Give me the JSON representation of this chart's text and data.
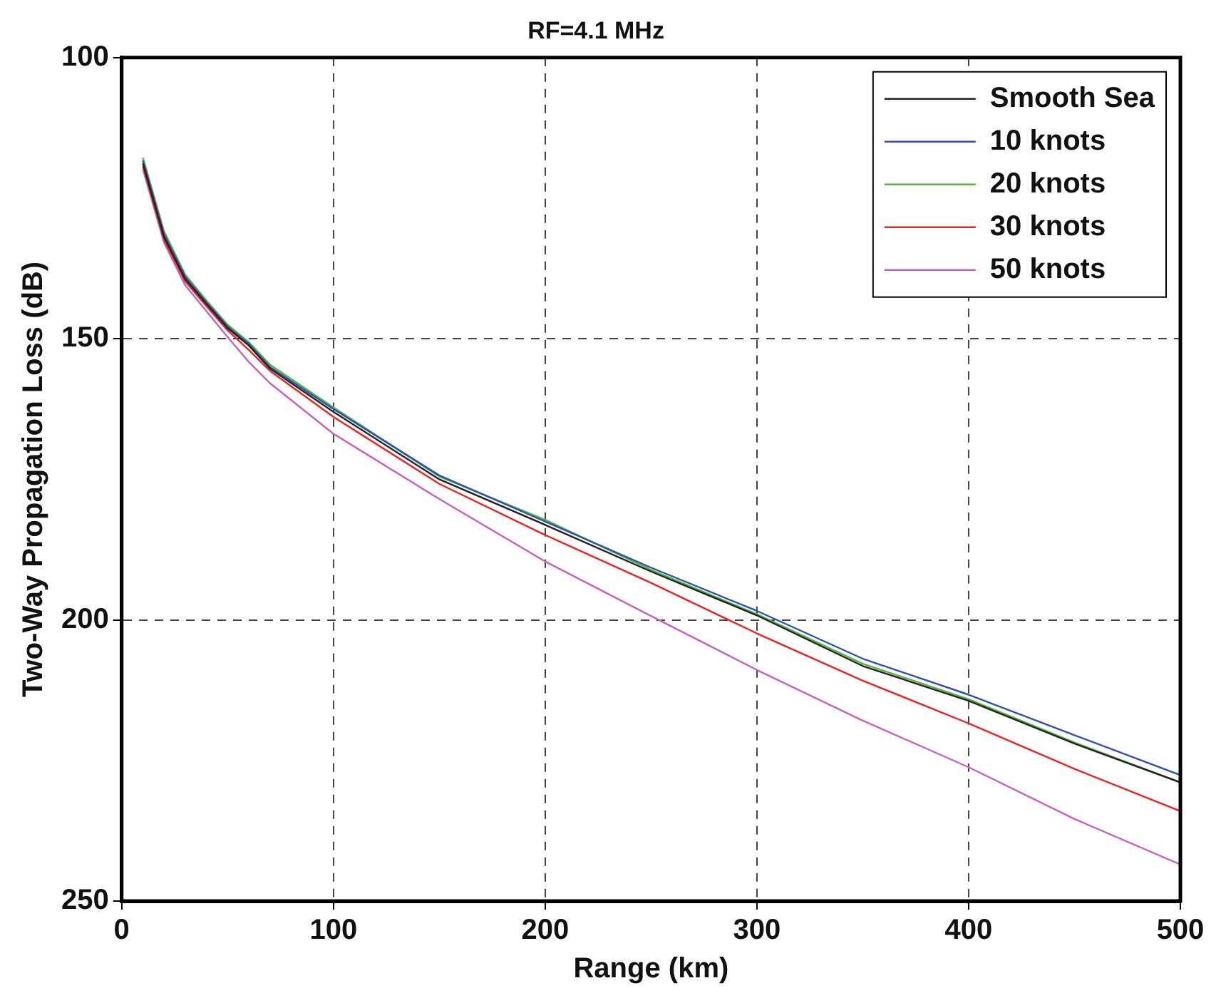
{
  "chart_data": {
    "type": "line",
    "title": "RF=4.1 MHz",
    "xlabel": "Range (km)",
    "ylabel": "Two-Way Propagation Loss (dB)",
    "x": [
      10,
      20,
      30,
      40,
      50,
      60,
      70,
      100,
      150,
      200,
      250,
      300,
      350,
      400,
      450,
      500
    ],
    "series": [
      {
        "name": "Smooth Sea",
        "color": "#222222",
        "values": [
          118.8,
          131.9,
          139.4,
          143.8,
          148.1,
          151.2,
          155.3,
          163,
          175,
          183.1,
          191.4,
          199.2,
          208.2,
          214.4,
          222,
          228.9
        ]
      },
      {
        "name": "10 knots",
        "color": "#3050b0",
        "values": [
          118.3,
          131.4,
          139,
          143.5,
          147.8,
          150.9,
          155,
          162.5,
          174.3,
          182.5,
          190.7,
          198.4,
          206.9,
          213.3,
          220.5,
          227.6
        ]
      },
      {
        "name": "20 knots",
        "color": "#50b840",
        "values": [
          117.8,
          130.9,
          138.6,
          143.2,
          147.5,
          150.6,
          154.6,
          162.2,
          174.5,
          182.2,
          191.1,
          199,
          207.8,
          214.1,
          221.8,
          228.9
        ]
      },
      {
        "name": "30 knots",
        "color": "#f02020",
        "values": [
          119.3,
          132.4,
          139.8,
          144.2,
          148.5,
          152,
          155.7,
          163.9,
          175.8,
          184.9,
          193.4,
          202.4,
          210.8,
          218.4,
          226.5,
          234
        ]
      },
      {
        "name": "50 knots",
        "color": "#c860c0",
        "values": [
          119.8,
          132.9,
          140.5,
          145.1,
          149.7,
          154.1,
          157.9,
          166.9,
          178.5,
          189.6,
          199.3,
          208.9,
          217.9,
          226.2,
          235.4,
          243.5
        ]
      }
    ],
    "xlim": [
      0,
      500
    ],
    "xticks": [
      0,
      100,
      200,
      300,
      400,
      500
    ],
    "ylim": [
      250,
      100
    ],
    "yticks": [
      100,
      150,
      200,
      250
    ],
    "grid": true,
    "legend": "top right",
    "marker": "none",
    "line_style": "solid"
  }
}
